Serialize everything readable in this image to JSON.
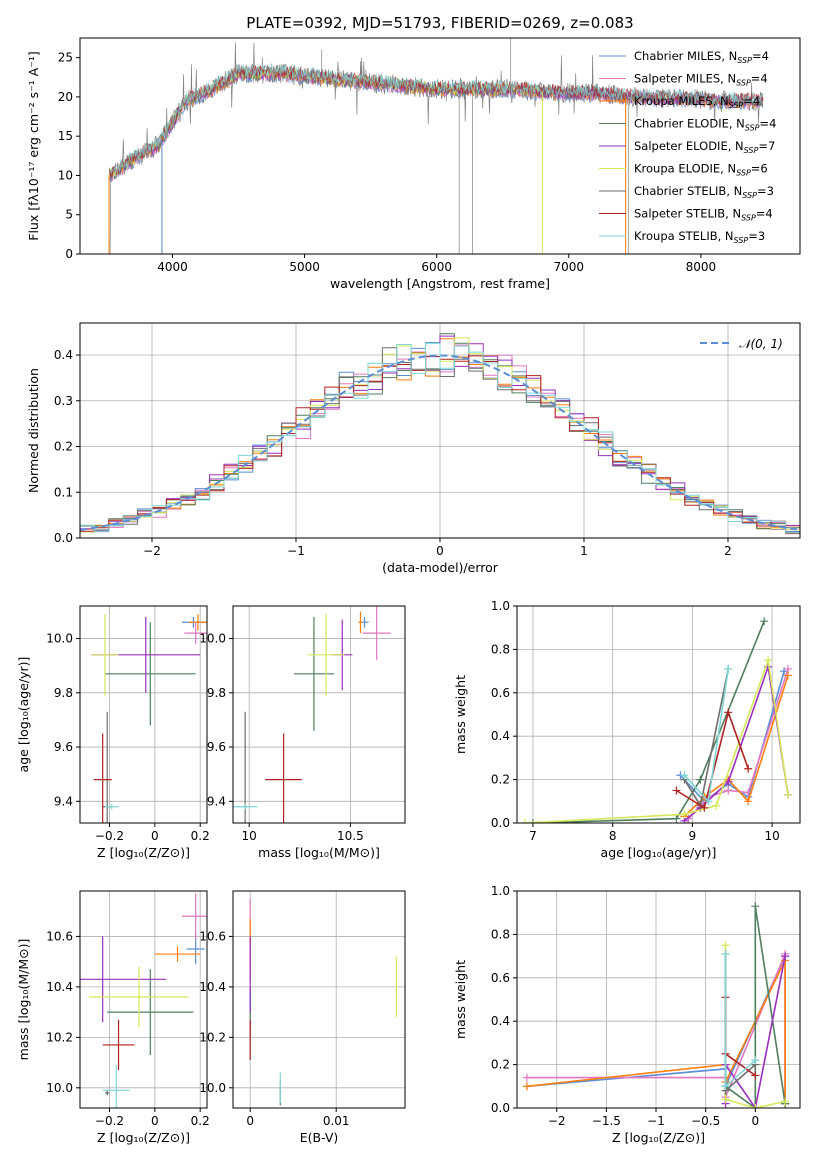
{
  "colors": {
    "series": [
      "#5b8ed6",
      "#e377c2",
      "#ff7f0e",
      "#4f7f5f",
      "#9b2fbf",
      "#d6e85a",
      "#6e6e6e",
      "#b22222",
      "#7fd6d6"
    ],
    "data_gray": "#808080",
    "normal": "#5b8ed6",
    "grid": "#b0b0b0"
  },
  "legend_labels": [
    {
      "base": "Chabrier MILES, N",
      "sub": "SSP",
      "tail": "=4"
    },
    {
      "base": "Salpeter MILES, N",
      "sub": "SSP",
      "tail": "=4"
    },
    {
      "base": "Kroupa MILES, N",
      "sub": "SSP",
      "tail": "=4"
    },
    {
      "base": "Chabrier ELODIE, N",
      "sub": "SSP",
      "tail": "=4"
    },
    {
      "base": "Salpeter ELODIE, N",
      "sub": "SSP",
      "tail": "=7"
    },
    {
      "base": "Kroupa ELODIE, N",
      "sub": "SSP",
      "tail": "=6"
    },
    {
      "base": "Chabrier STELIB, N",
      "sub": "SSP",
      "tail": "=3"
    },
    {
      "base": "Salpeter STELIB, N",
      "sub": "SSP",
      "tail": "=4"
    },
    {
      "base": "Kroupa STELIB, N",
      "sub": "SSP",
      "tail": "=3"
    }
  ],
  "chart_data": [
    {
      "id": "spectrum",
      "type": "line",
      "title": "PLATE=0392, MJD=51793, FIBERID=0269, z=0.083",
      "xlabel": "wavelength [Angstrom, rest frame]",
      "ylabel": "Flux [fλ10⁻¹⁷ erg cm⁻² s⁻¹ A⁻¹]",
      "xlim": [
        3300,
        8750
      ],
      "ylim": [
        0,
        27.5
      ],
      "xticks": [
        4000,
        5000,
        6000,
        7000,
        8000
      ],
      "yticks": [
        0,
        5,
        10,
        15,
        20,
        25
      ],
      "grid": false,
      "legend": "upper right",
      "continuum": {
        "x": [
          3520,
          3700,
          3900,
          4100,
          4300,
          4500,
          4800,
          5100,
          5400,
          5700,
          6000,
          6300,
          6600,
          6900,
          7200,
          7450,
          7800,
          8200
        ],
        "y": [
          10,
          12,
          14,
          19.5,
          21,
          23,
          23,
          22.5,
          22,
          21.5,
          21,
          21,
          21,
          20.5,
          20.5,
          20,
          19.8,
          19.5
        ]
      }
    },
    {
      "id": "residuals",
      "type": "bar",
      "xlabel": "(data-model)/error",
      "ylabel": "Normed distribution",
      "xlim": [
        -2.5,
        2.5
      ],
      "ylim": [
        0,
        0.47
      ],
      "xticks": [
        -2,
        -1,
        0,
        1,
        2
      ],
      "yticks": [
        0.0,
        0.1,
        0.2,
        0.3,
        0.4
      ],
      "grid": true,
      "legend": "upper right",
      "normal_label": "𝒩(0, 1)",
      "bin_width": 0.1
    },
    {
      "id": "age-vs-Z",
      "type": "scatter",
      "xlabel": "Z [log₁₀(Z/Z⊙)]",
      "ylabel": "age  [log₁₀(age/yr)]",
      "xlim": [
        -0.33,
        0.23
      ],
      "ylim": [
        9.32,
        10.12
      ],
      "xticks": [
        -0.2,
        0.0,
        0.2
      ],
      "yticks": [
        9.4,
        9.6,
        9.8,
        10.0
      ],
      "grid": true,
      "points": [
        {
          "x": 0.17,
          "y": 10.06,
          "xerr": 0.05,
          "yerr": 0.02
        },
        {
          "x": 0.18,
          "y": 10.02,
          "xerr": 0.05,
          "yerr": 0.04
        },
        {
          "x": 0.19,
          "y": 10.06,
          "xerr": 0.04,
          "yerr": 0.03
        },
        {
          "x": -0.02,
          "y": 9.87,
          "xerr": 0.2,
          "yerr": 0.19
        },
        {
          "x": -0.04,
          "y": 9.94,
          "xerr": 0.24,
          "yerr": 0.14
        },
        {
          "x": -0.22,
          "y": 9.94,
          "xerr": 0.06,
          "yerr": 0.15
        },
        {
          "x": -0.21,
          "y": 9.38,
          "xerr": 0.02,
          "yerr": 0.35
        },
        {
          "x": -0.23,
          "y": 9.48,
          "xerr": 0.04,
          "yerr": 0.17
        },
        {
          "x": -0.19,
          "y": 9.38,
          "xerr": 0.03,
          "yerr": 0.01
        }
      ]
    },
    {
      "id": "age-vs-mass",
      "type": "scatter",
      "xlabel": "mass [log₁₀(M/M⊙)]",
      "ylabel": "",
      "xlim": [
        9.92,
        10.77
      ],
      "ylim": [
        9.32,
        10.12
      ],
      "xticks": [
        10.0,
        10.5
      ],
      "yticks": [
        9.4,
        9.6,
        9.8,
        10.0
      ],
      "grid": true,
      "points": [
        {
          "x": 10.57,
          "y": 10.06,
          "xerr": 0.02,
          "yerr": 0.02
        },
        {
          "x": 10.63,
          "y": 10.02,
          "xerr": 0.07,
          "yerr": 0.1
        },
        {
          "x": 10.55,
          "y": 10.06,
          "xerr": 0.01,
          "yerr": 0.04
        },
        {
          "x": 10.32,
          "y": 9.87,
          "xerr": 0.1,
          "yerr": 0.21
        },
        {
          "x": 10.46,
          "y": 9.94,
          "xerr": 0.05,
          "yerr": 0.13
        },
        {
          "x": 10.38,
          "y": 9.94,
          "xerr": 0.09,
          "yerr": 0.15
        },
        {
          "x": 9.98,
          "y": 9.38,
          "xerr": 0.01,
          "yerr": 0.35
        },
        {
          "x": 10.17,
          "y": 9.48,
          "xerr": 0.09,
          "yerr": 0.17
        },
        {
          "x": 9.98,
          "y": 9.38,
          "xerr": 0.06,
          "yerr": 0.01
        }
      ]
    },
    {
      "id": "massweight-vs-age",
      "type": "line",
      "xlabel": "age  [log₁₀(age/yr)]",
      "ylabel": "mass weight",
      "xlim": [
        6.8,
        10.35
      ],
      "ylim": [
        0,
        1.0
      ],
      "xticks": [
        7,
        8,
        9,
        10
      ],
      "yticks": [
        0.0,
        0.2,
        0.4,
        0.6,
        0.8,
        1.0
      ],
      "grid": true,
      "series": [
        {
          "x": [
            8.85,
            9.15,
            9.45,
            9.7,
            10.15
          ],
          "y": [
            0.22,
            0.1,
            0.18,
            0.12,
            0.7
          ]
        },
        {
          "x": [
            8.95,
            9.2,
            9.45,
            9.7,
            10.2
          ],
          "y": [
            0.02,
            0.12,
            0.15,
            0.14,
            0.71
          ]
        },
        {
          "x": [
            8.9,
            9.15,
            9.45,
            9.7,
            10.2
          ],
          "y": [
            0.03,
            0.12,
            0.2,
            0.1,
            0.68
          ]
        },
        {
          "x": [
            7.0,
            8.8,
            9.1,
            9.9
          ],
          "y": [
            0.0,
            0.02,
            0.2,
            0.93
          ]
        },
        {
          "x": [
            8.9,
            9.1,
            9.45,
            9.95,
            10.2
          ],
          "y": [
            0.01,
            0.07,
            0.19,
            0.72,
            0.13
          ]
        },
        {
          "x": [
            6.9,
            8.9,
            9.3,
            9.95,
            10.2
          ],
          "y": [
            0.0,
            0.04,
            0.08,
            0.75,
            0.13
          ]
        },
        {
          "x": [
            8.9,
            9.1,
            9.45
          ],
          "y": [
            0.2,
            0.08,
            0.71
          ]
        },
        {
          "x": [
            8.8,
            9.15,
            9.45,
            9.7
          ],
          "y": [
            0.15,
            0.07,
            0.51,
            0.25
          ]
        },
        {
          "x": [
            8.9,
            9.2,
            9.45
          ],
          "y": [
            0.22,
            0.1,
            0.71
          ]
        }
      ]
    },
    {
      "id": "mass-vs-Z",
      "type": "scatter",
      "xlabel": "Z [log₁₀(Z/Z⊙)]",
      "ylabel": "mass [log₁₀(M/M⊙)]",
      "xlim": [
        -0.33,
        0.23
      ],
      "ylim": [
        9.92,
        10.78
      ],
      "xticks": [
        -0.2,
        0.0,
        0.2
      ],
      "yticks": [
        10.0,
        10.2,
        10.4,
        10.6
      ],
      "grid": true,
      "points": [
        {
          "x": 0.18,
          "y": 10.55,
          "xerr": 0.04,
          "yerr": 0.06
        },
        {
          "x": 0.18,
          "y": 10.68,
          "xerr": 0.06,
          "yerr": 0.09
        },
        {
          "x": 0.1,
          "y": 10.53,
          "xerr": 0.1,
          "yerr": 0.03
        },
        {
          "x": -0.02,
          "y": 10.3,
          "xerr": 0.19,
          "yerr": 0.17
        },
        {
          "x": -0.23,
          "y": 10.43,
          "xerr": 0.28,
          "yerr": 0.17
        },
        {
          "x": -0.07,
          "y": 10.36,
          "xerr": 0.22,
          "yerr": 0.12
        },
        {
          "x": -0.21,
          "y": 9.98,
          "xerr": 0.01,
          "yerr": 0.01
        },
        {
          "x": -0.16,
          "y": 10.17,
          "xerr": 0.07,
          "yerr": 0.1
        },
        {
          "x": -0.17,
          "y": 9.99,
          "xerr": 0.06,
          "yerr": 0.1
        }
      ]
    },
    {
      "id": "ebv",
      "type": "scatter",
      "xlabel": "E(B-V)",
      "ylabel": "",
      "xlim": [
        -0.002,
        0.018
      ],
      "ylim": [
        9.92,
        10.78
      ],
      "xticks": [
        0.0,
        0.01
      ],
      "yticks": [
        10.0,
        10.2,
        10.4,
        10.6
      ],
      "grid": true,
      "points": [
        {
          "x": 0.0,
          "y": 10.55,
          "xerr": 0,
          "yerr": 0.08
        },
        {
          "x": 0.0,
          "y": 10.65,
          "xerr": 0,
          "yerr": 0.1
        },
        {
          "x": 0.0,
          "y": 10.55,
          "xerr": 0,
          "yerr": 0.12
        },
        {
          "x": 0.0,
          "y": 10.3,
          "xerr": 0,
          "yerr": 0.1
        },
        {
          "x": 0.0,
          "y": 10.45,
          "xerr": 0,
          "yerr": 0.15
        },
        {
          "x": 0.017,
          "y": 10.4,
          "xerr": 0,
          "yerr": 0.12
        },
        {
          "x": 0.0035,
          "y": 9.98,
          "xerr": 0,
          "yerr": 0.05
        },
        {
          "x": 0.0,
          "y": 10.19,
          "xerr": 0,
          "yerr": 0.08
        },
        {
          "x": 0.0035,
          "y": 10.0,
          "xerr": 0,
          "yerr": 0.06
        }
      ]
    },
    {
      "id": "massweight-vs-Z",
      "type": "line",
      "xlabel": "Z [log₁₀(Z/Z⊙)]",
      "ylabel": "mass weight",
      "xlim": [
        -2.4,
        0.45
      ],
      "ylim": [
        0,
        1.0
      ],
      "xticks": [
        -2.0,
        -1.5,
        -1.0,
        -0.5,
        0.0
      ],
      "yticks": [
        0.0,
        0.2,
        0.4,
        0.6,
        0.8,
        1.0
      ],
      "grid": true,
      "series": [
        {
          "x": [
            -2.3,
            -0.3,
            -0.3,
            0.3,
            0.3
          ],
          "y": [
            0.1,
            0.18,
            0.1,
            0.7,
            0.02
          ]
        },
        {
          "x": [
            -2.3,
            -0.3,
            -0.3,
            0.3,
            0.3
          ],
          "y": [
            0.14,
            0.14,
            0.05,
            0.71,
            0.02
          ]
        },
        {
          "x": [
            -2.3,
            -0.3,
            -0.3,
            0.3,
            0.3
          ],
          "y": [
            0.1,
            0.2,
            0.12,
            0.68,
            0.02
          ]
        },
        {
          "x": [
            -0.3,
            0.0,
            0.0,
            0.3
          ],
          "y": [
            0.1,
            0.0,
            0.93,
            0.02
          ]
        },
        {
          "x": [
            -0.3,
            -0.3,
            0.0,
            0.3
          ],
          "y": [
            0.02,
            0.2,
            0.0,
            0.7
          ]
        },
        {
          "x": [
            -0.3,
            -0.3,
            0.0,
            0.3
          ],
          "y": [
            0.75,
            0.04,
            0.0,
            0.03
          ]
        },
        {
          "x": [
            -0.3,
            -0.3,
            0.0
          ],
          "y": [
            0.71,
            0.08,
            0.2
          ]
        },
        {
          "x": [
            -0.3,
            -0.3,
            0.0
          ],
          "y": [
            0.51,
            0.25,
            0.15
          ]
        },
        {
          "x": [
            -0.3,
            -0.3,
            0.0
          ],
          "y": [
            0.71,
            0.1,
            0.22
          ]
        }
      ]
    }
  ]
}
